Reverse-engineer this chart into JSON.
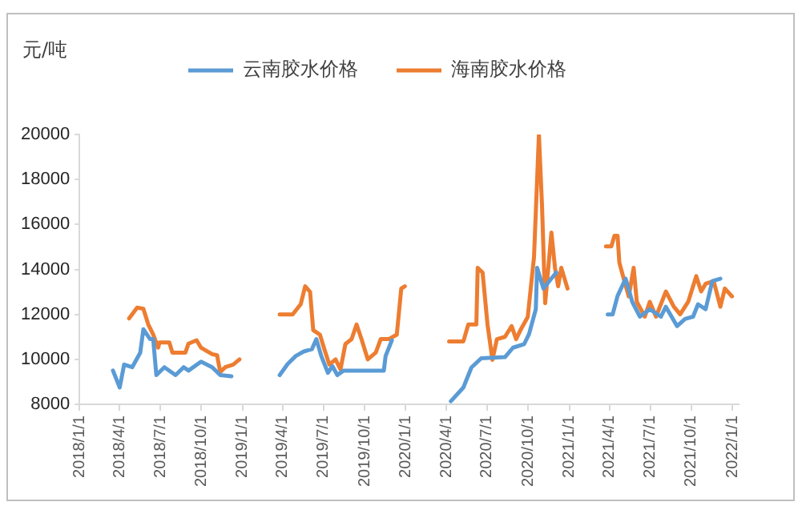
{
  "chart_data": {
    "type": "line",
    "ylabel": "元/吨",
    "legend": "top",
    "grid": false,
    "marker": "none",
    "line_style": "solid",
    "xlim": [
      "2018-01-01",
      "2022-01-15"
    ],
    "xticks": [
      {
        "value": "2018-01-01",
        "label": "2018/1/1"
      },
      {
        "value": "2018-04-01",
        "label": "2018/4/1"
      },
      {
        "value": "2018-07-01",
        "label": "2018/7/1"
      },
      {
        "value": "2018-10-01",
        "label": "2018/10/1"
      },
      {
        "value": "2019-01-01",
        "label": "2019/1/1"
      },
      {
        "value": "2019-04-01",
        "label": "2019/4/1"
      },
      {
        "value": "2019-07-01",
        "label": "2019/7/1"
      },
      {
        "value": "2019-10-01",
        "label": "2019/10/1"
      },
      {
        "value": "2020-01-01",
        "label": "2020/1/1"
      },
      {
        "value": "2020-04-01",
        "label": "2020/4/1"
      },
      {
        "value": "2020-07-01",
        "label": "2020/7/1"
      },
      {
        "value": "2020-10-01",
        "label": "2020/10/1"
      },
      {
        "value": "2021-01-01",
        "label": "2021/1/1"
      },
      {
        "value": "2021-04-01",
        "label": "2021/4/1"
      },
      {
        "value": "2021-07-01",
        "label": "2021/7/1"
      },
      {
        "value": "2021-10-01",
        "label": "2021/10/1"
      },
      {
        "value": "2022-01-01",
        "label": "2022/1/1"
      }
    ],
    "ylim": [
      8000,
      20000
    ],
    "yticks": [
      8000,
      10000,
      12000,
      14000,
      16000,
      18000,
      20000
    ],
    "series": [
      {
        "name": "云南胶水价格",
        "color": "#5b9bd5",
        "x": [
          "2018-03-17",
          "2018-04-01",
          "2018-04-11",
          "2018-04-29",
          "2018-05-17",
          "2018-05-24",
          "2018-06-08",
          "2018-06-15",
          "2018-06-22",
          "2018-07-10",
          "2018-08-04",
          "2018-08-22",
          "2018-09-02",
          "2018-09-30",
          "2018-10-25",
          "2018-11-12",
          "2018-12-07",
          "2019-02-01",
          "2019-03-25",
          "2019-04-12",
          "2019-04-30",
          "2019-05-18",
          "2019-06-05",
          "2019-06-15",
          "2019-06-26",
          "2019-07-11",
          "2019-07-21",
          "2019-08-01",
          "2019-08-15",
          "2019-11-13",
          "2019-11-17",
          "2019-12-01",
          "2020-02-01",
          "2020-04-11",
          "2020-05-09",
          "2020-05-27",
          "2020-06-18",
          "2020-08-10",
          "2020-08-28",
          "2020-09-22",
          "2020-10-03",
          "2020-10-18",
          "2020-10-21",
          "2020-11-04",
          "2020-11-22",
          "2020-12-03",
          "2021-02-01",
          "2021-03-28",
          "2021-04-08",
          "2021-04-19",
          "2021-05-07",
          "2021-05-22",
          "2021-06-08",
          "2021-06-30",
          "2021-07-25",
          "2021-08-05",
          "2021-08-30",
          "2021-09-17",
          "2021-10-05",
          "2021-10-16",
          "2021-11-02",
          "2021-11-17",
          "2021-12-05"
        ],
        "values": [
          9500,
          8750,
          9770,
          9650,
          10300,
          11340,
          10900,
          10900,
          9300,
          9650,
          9300,
          9650,
          9500,
          9900,
          9650,
          9300,
          9250,
          null,
          9300,
          9800,
          10150,
          10350,
          10450,
          10900,
          10150,
          9400,
          9700,
          9300,
          9500,
          9500,
          10150,
          10850,
          null,
          8140,
          8750,
          9640,
          10050,
          10100,
          10520,
          10680,
          11130,
          12230,
          14070,
          13150,
          13600,
          13860,
          null,
          12000,
          12000,
          12820,
          13590,
          12550,
          11900,
          12230,
          11900,
          12340,
          11480,
          11800,
          11900,
          12450,
          12230,
          13480,
          13590
        ]
      },
      {
        "name": "海南胶水价格",
        "color": "#ed7d31",
        "x": [
          "2018-04-22",
          "2018-05-10",
          "2018-05-24",
          "2018-06-04",
          "2018-06-15",
          "2018-06-26",
          "2018-06-29",
          "2018-07-21",
          "2018-07-28",
          "2018-08-26",
          "2018-09-02",
          "2018-09-20",
          "2018-09-30",
          "2018-10-25",
          "2018-11-05",
          "2018-11-12",
          "2018-11-23",
          "2018-12-11",
          "2018-12-25",
          "2019-02-01",
          "2019-03-25",
          "2019-04-23",
          "2019-05-11",
          "2019-05-21",
          "2019-06-01",
          "2019-06-08",
          "2019-06-23",
          "2019-07-03",
          "2019-07-14",
          "2019-07-28",
          "2019-08-08",
          "2019-08-19",
          "2019-09-02",
          "2019-09-13",
          "2019-09-24",
          "2019-10-08",
          "2019-10-26",
          "2019-11-06",
          "2019-11-24",
          "2019-12-12",
          "2019-12-22",
          "2019-12-30",
          "2020-02-01",
          "2020-04-07",
          "2020-05-09",
          "2020-05-20",
          "2020-06-07",
          "2020-06-10",
          "2020-06-21",
          "2020-07-02",
          "2020-07-13",
          "2020-07-23",
          "2020-08-10",
          "2020-08-25",
          "2020-09-04",
          "2020-09-15",
          "2020-09-30",
          "2020-10-14",
          "2020-10-25",
          "2020-11-01",
          "2020-11-08",
          "2020-11-22",
          "2020-11-30",
          "2020-12-07",
          "2020-12-14",
          "2020-12-28",
          "2021-02-01",
          "2021-03-24",
          "2021-04-05",
          "2021-04-12",
          "2021-04-19",
          "2021-04-23",
          "2021-05-04",
          "2021-05-14",
          "2021-05-25",
          "2021-06-01",
          "2021-06-19",
          "2021-06-30",
          "2021-07-14",
          "2021-08-05",
          "2021-08-23",
          "2021-09-06",
          "2021-09-24",
          "2021-10-12",
          "2021-10-23",
          "2021-11-02",
          "2021-11-20",
          "2021-12-05",
          "2021-12-15",
          "2021-12-31"
        ],
        "values": [
          11820,
          12300,
          12250,
          11550,
          11100,
          10520,
          10750,
          10750,
          10300,
          10300,
          10700,
          10850,
          10520,
          10230,
          10180,
          9430,
          9650,
          9770,
          10000,
          null,
          12000,
          12000,
          12450,
          13250,
          13000,
          11300,
          11100,
          10450,
          9770,
          10000,
          9550,
          10680,
          10900,
          11550,
          10900,
          10000,
          10300,
          10900,
          10900,
          11100,
          13150,
          13250,
          null,
          10800,
          10800,
          11550,
          11550,
          14070,
          13860,
          11550,
          9980,
          10900,
          11000,
          11480,
          10900,
          11350,
          11880,
          14540,
          20000,
          16800,
          12500,
          15640,
          14070,
          13250,
          14070,
          13150,
          null,
          15020,
          15020,
          15500,
          15500,
          14300,
          13500,
          12800,
          14070,
          12560,
          11900,
          12560,
          11900,
          13020,
          12340,
          12000,
          12560,
          13700,
          13020,
          13360,
          13480,
          12340,
          13150,
          12800
        ]
      }
    ]
  }
}
